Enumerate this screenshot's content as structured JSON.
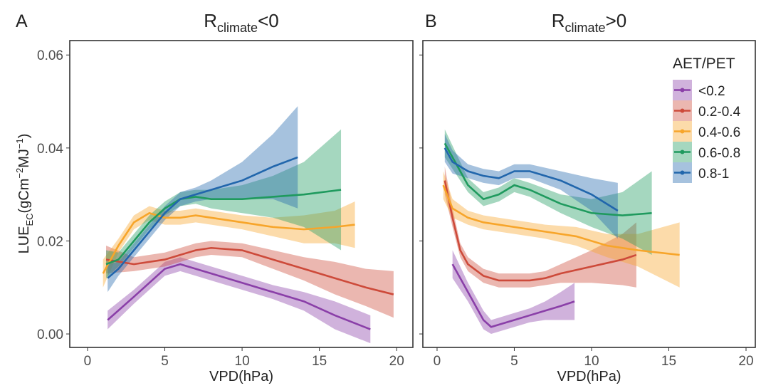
{
  "chart_data": [
    {
      "type": "line-ribbon",
      "panel_label": "A",
      "title": {
        "main": "R",
        "sub": "climate",
        "suffix": "<0"
      },
      "xlabel": "VPD(hPa)",
      "ylabel": [
        "LUE",
        "EC",
        "(gCm",
        "−2",
        "MJ",
        "−1",
        ")"
      ],
      "xlim": [
        -1.15,
        21.05
      ],
      "ylim": [
        -0.0029,
        0.0631
      ],
      "xticks": [
        0,
        5,
        10,
        15,
        20
      ],
      "yticks": [
        {
          "value": 0,
          "label": "0.00"
        },
        {
          "value": 0.02,
          "label": "0.02"
        },
        {
          "value": 0.04,
          "label": "0.04"
        },
        {
          "value": 0.06,
          "label": "0.06"
        }
      ],
      "series": [
        {
          "name": "<0.2",
          "color": "#8a3fa8",
          "x": [
            1.3,
            3,
            5,
            6,
            7,
            8,
            10,
            12,
            14,
            16,
            18.3
          ],
          "values": [
            0.003,
            0.008,
            0.014,
            0.015,
            0.014,
            0.013,
            0.011,
            0.009,
            0.007,
            0.004,
            0.001
          ],
          "lower": [
            0.001,
            0.0065,
            0.0125,
            0.0135,
            0.0125,
            0.0115,
            0.0095,
            0.0075,
            0.005,
            0.001,
            -0.002
          ],
          "upper": [
            0.005,
            0.0095,
            0.0155,
            0.0165,
            0.0155,
            0.0145,
            0.0125,
            0.0105,
            0.009,
            0.007,
            0.004
          ]
        },
        {
          "name": "0.2-0.4",
          "color": "#cd4a3a",
          "x": [
            1.2,
            3,
            5,
            7,
            8,
            10,
            12,
            14,
            16,
            18,
            19.8
          ],
          "values": [
            0.016,
            0.015,
            0.016,
            0.018,
            0.0185,
            0.018,
            0.016,
            0.014,
            0.012,
            0.01,
            0.0085
          ],
          "lower": [
            0.013,
            0.0135,
            0.0145,
            0.0165,
            0.017,
            0.0165,
            0.014,
            0.0115,
            0.0085,
            0.006,
            0.0035
          ],
          "upper": [
            0.019,
            0.0165,
            0.0175,
            0.0195,
            0.02,
            0.0195,
            0.018,
            0.0165,
            0.0155,
            0.014,
            0.0135
          ]
        },
        {
          "name": "0.4-0.6",
          "color": "#f7a52a",
          "x": [
            1,
            2,
            3,
            4,
            5,
            6,
            7,
            8,
            10,
            12,
            14,
            16,
            17.3
          ],
          "values": [
            0.013,
            0.019,
            0.024,
            0.026,
            0.025,
            0.025,
            0.0255,
            0.025,
            0.024,
            0.023,
            0.0225,
            0.023,
            0.0235
          ],
          "lower": [
            0.01,
            0.0175,
            0.0225,
            0.0245,
            0.0235,
            0.0235,
            0.024,
            0.0235,
            0.0225,
            0.021,
            0.0195,
            0.0195,
            0.0185
          ],
          "upper": [
            0.016,
            0.0205,
            0.0255,
            0.0275,
            0.0265,
            0.0265,
            0.027,
            0.0265,
            0.0255,
            0.025,
            0.0255,
            0.0265,
            0.0285
          ]
        },
        {
          "name": "0.6-0.8",
          "color": "#1f9a5e",
          "x": [
            1.2,
            2,
            3,
            4,
            5,
            6,
            7,
            8,
            10,
            12,
            14,
            16.4
          ],
          "values": [
            0.015,
            0.016,
            0.02,
            0.024,
            0.027,
            0.029,
            0.0295,
            0.029,
            0.029,
            0.0295,
            0.03,
            0.031
          ],
          "lower": [
            0.012,
            0.0145,
            0.0185,
            0.0225,
            0.0255,
            0.0275,
            0.028,
            0.027,
            0.026,
            0.025,
            0.023,
            0.018
          ],
          "upper": [
            0.018,
            0.0175,
            0.0215,
            0.0255,
            0.0285,
            0.0305,
            0.031,
            0.031,
            0.032,
            0.034,
            0.037,
            0.044
          ]
        },
        {
          "name": "0.8-1",
          "color": "#2166ac",
          "x": [
            1.3,
            2,
            3,
            4,
            5,
            6,
            7,
            8,
            10,
            12,
            13.6
          ],
          "values": [
            0.012,
            0.014,
            0.018,
            0.022,
            0.026,
            0.029,
            0.03,
            0.031,
            0.033,
            0.036,
            0.038
          ],
          "lower": [
            0.009,
            0.0125,
            0.0165,
            0.0205,
            0.0245,
            0.0275,
            0.0285,
            0.029,
            0.029,
            0.029,
            0.027
          ],
          "upper": [
            0.015,
            0.0155,
            0.0195,
            0.0235,
            0.0275,
            0.0305,
            0.0315,
            0.033,
            0.037,
            0.043,
            0.049
          ]
        }
      ]
    },
    {
      "type": "line-ribbon",
      "panel_label": "B",
      "title": {
        "main": "R",
        "sub": "climate",
        "suffix": ">0"
      },
      "xlabel": "VPD(hPa)",
      "xlim": [
        -0.92,
        20.6
      ],
      "ylim": [
        -0.0029,
        0.0631
      ],
      "xticks": [
        0,
        5,
        10,
        15,
        20
      ],
      "yticks": [
        0,
        0.02,
        0.04,
        0.06
      ],
      "show_ytick_labels": false,
      "legend": "top-right",
      "legend_title": "AET/PET",
      "series": [
        {
          "name": "<0.2",
          "color": "#8a3fa8",
          "x": [
            1,
            2,
            3,
            3.5,
            4,
            5,
            6,
            7,
            8,
            8.9
          ],
          "values": [
            0.015,
            0.009,
            0.003,
            0.0015,
            0.002,
            0.003,
            0.004,
            0.005,
            0.006,
            0.007
          ],
          "lower": [
            0.012,
            0.007,
            0.001,
            0,
            0.0005,
            0.0015,
            0.0025,
            0.003,
            0.003,
            0.003
          ],
          "upper": [
            0.018,
            0.011,
            0.005,
            0.003,
            0.0035,
            0.0045,
            0.0055,
            0.007,
            0.009,
            0.011
          ]
        },
        {
          "name": "0.2-0.4",
          "color": "#cd4a3a",
          "x": [
            0.5,
            1,
            1.5,
            2,
            3,
            4,
            5,
            6,
            7,
            8,
            10,
            12,
            12.9
          ],
          "values": [
            0.033,
            0.025,
            0.018,
            0.015,
            0.0125,
            0.0115,
            0.0115,
            0.0115,
            0.012,
            0.013,
            0.0145,
            0.016,
            0.017
          ],
          "lower": [
            0.03,
            0.023,
            0.0165,
            0.0135,
            0.011,
            0.01,
            0.01,
            0.01,
            0.0105,
            0.011,
            0.011,
            0.0105,
            0.01
          ],
          "upper": [
            0.036,
            0.027,
            0.0195,
            0.0165,
            0.014,
            0.013,
            0.013,
            0.013,
            0.0135,
            0.015,
            0.018,
            0.0215,
            0.024
          ]
        },
        {
          "name": "0.4-0.6",
          "color": "#f7a52a",
          "x": [
            0.4,
            1,
            2,
            3,
            5,
            7,
            9,
            11,
            13,
            15.7
          ],
          "values": [
            0.032,
            0.027,
            0.025,
            0.024,
            0.023,
            0.022,
            0.021,
            0.019,
            0.018,
            0.017
          ],
          "lower": [
            0.029,
            0.025,
            0.0235,
            0.0225,
            0.0215,
            0.0205,
            0.019,
            0.0165,
            0.0145,
            0.01
          ],
          "upper": [
            0.035,
            0.029,
            0.0265,
            0.0255,
            0.0245,
            0.0235,
            0.023,
            0.0215,
            0.0215,
            0.024
          ]
        },
        {
          "name": "0.6-0.8",
          "color": "#1f9a5e",
          "x": [
            0.5,
            1,
            2,
            3,
            4,
            5,
            6,
            8,
            10,
            12,
            13.9
          ],
          "values": [
            0.041,
            0.038,
            0.032,
            0.029,
            0.03,
            0.032,
            0.031,
            0.028,
            0.026,
            0.0255,
            0.026
          ],
          "lower": [
            0.038,
            0.0355,
            0.0305,
            0.0275,
            0.0285,
            0.0305,
            0.0295,
            0.026,
            0.023,
            0.0205,
            0.017
          ],
          "upper": [
            0.044,
            0.0405,
            0.0335,
            0.0305,
            0.0315,
            0.0335,
            0.0325,
            0.03,
            0.029,
            0.0305,
            0.035
          ]
        },
        {
          "name": "0.8-1",
          "color": "#2166ac",
          "x": [
            0.5,
            1,
            2,
            3,
            4,
            5,
            6,
            8,
            10,
            11.7
          ],
          "values": [
            0.04,
            0.037,
            0.035,
            0.034,
            0.0335,
            0.035,
            0.035,
            0.033,
            0.03,
            0.0265
          ],
          "lower": [
            0.037,
            0.0345,
            0.0335,
            0.0325,
            0.032,
            0.0335,
            0.0335,
            0.031,
            0.0265,
            0.0205
          ],
          "upper": [
            0.043,
            0.0395,
            0.0365,
            0.0355,
            0.035,
            0.0365,
            0.0365,
            0.035,
            0.0335,
            0.0325
          ]
        }
      ]
    }
  ]
}
